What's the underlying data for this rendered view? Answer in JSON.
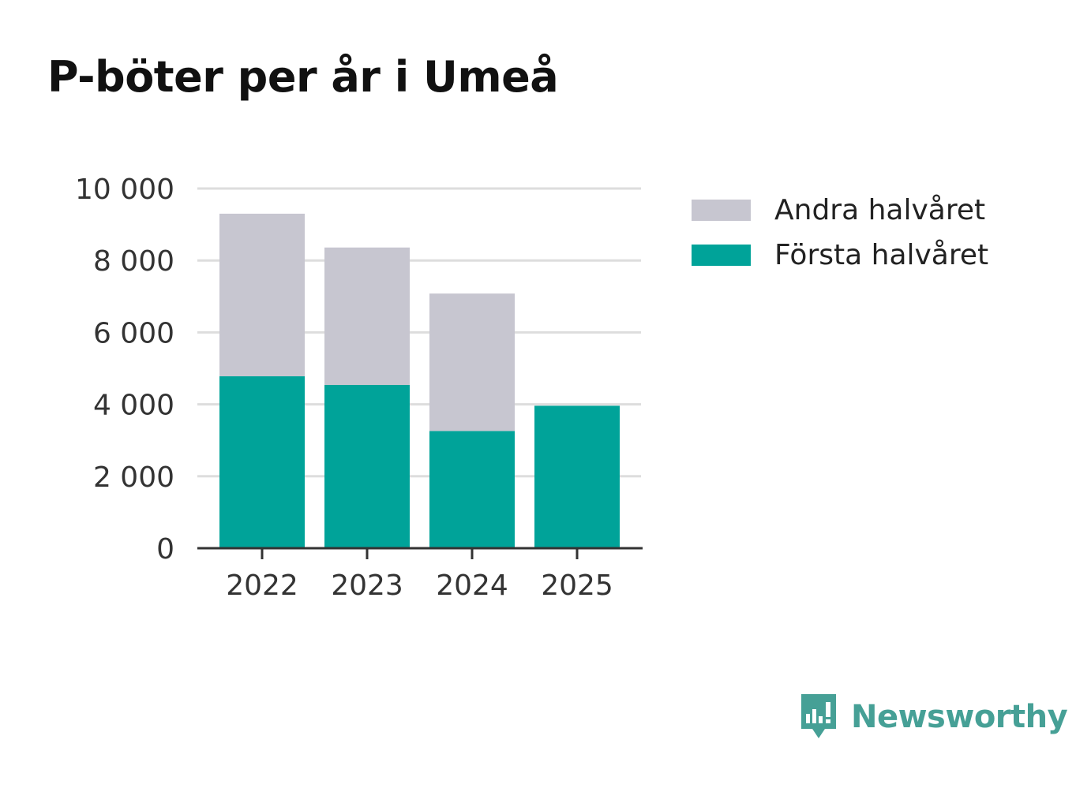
{
  "title": "P-böter per år i Umeå",
  "chart_data": {
    "type": "bar",
    "stacked": true,
    "title": "P-böter per år i Umeå",
    "categories": [
      "2022",
      "2023",
      "2024",
      "2025"
    ],
    "series": [
      {
        "name": "Första halvåret",
        "color": "#00a399",
        "values": [
          4780,
          4540,
          3260,
          3960
        ]
      },
      {
        "name": "Andra halvåret",
        "color": "#c7c6d0",
        "values": [
          4520,
          3820,
          3820,
          0
        ]
      }
    ],
    "y_ticks": [
      0,
      2000,
      4000,
      6000,
      8000,
      10000
    ],
    "y_tick_labels": [
      "0",
      "2 000",
      "4 000",
      "6 000",
      "8 000",
      "10 000"
    ],
    "ylim": [
      0,
      10000
    ],
    "xlabel": "",
    "ylabel": "",
    "grid": true,
    "legend_position": "right"
  },
  "legend": {
    "items": [
      {
        "label": "Andra halvåret",
        "color": "#c7c6d0"
      },
      {
        "label": "Första halvåret",
        "color": "#00a399"
      }
    ]
  },
  "brand": {
    "name": "Newsworthy",
    "icon": "newsworthy-logo-icon",
    "color": "#46a096"
  }
}
